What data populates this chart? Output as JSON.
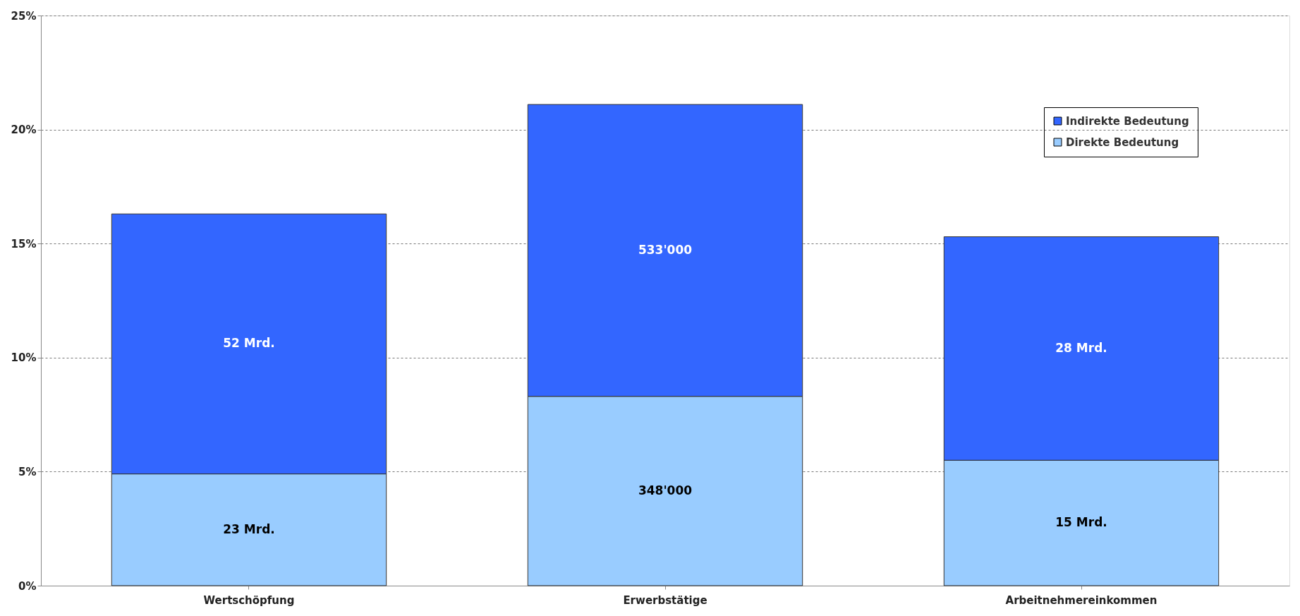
{
  "chart_data": {
    "type": "bar",
    "stacked": true,
    "categories": [
      "Wertschöpfung",
      "Erwerbstätige",
      "Arbeitnehmereinkommen"
    ],
    "series": [
      {
        "name": "Direkte Bedeutung",
        "color": "#99ccff",
        "values": [
          4.9,
          8.3,
          5.5
        ]
      },
      {
        "name": "Indirekte Bedeutung",
        "color": "#3366ff",
        "values": [
          11.4,
          12.8,
          9.8
        ]
      }
    ],
    "annotations": [
      "23 Mrd.",
      "348'000",
      "15 Mrd.",
      "52 Mrd.",
      "533'000",
      "28 Mrd."
    ],
    "ylim": [
      0,
      25
    ],
    "yticks": [
      {
        "value": 0,
        "label": "0%"
      },
      {
        "value": 5,
        "label": "5%"
      },
      {
        "value": 10,
        "label": "10%"
      },
      {
        "value": 15,
        "label": "15%"
      },
      {
        "value": 20,
        "label": "20%"
      },
      {
        "value": 25,
        "label": "25%"
      }
    ],
    "grid": "y",
    "legend": "top right"
  }
}
